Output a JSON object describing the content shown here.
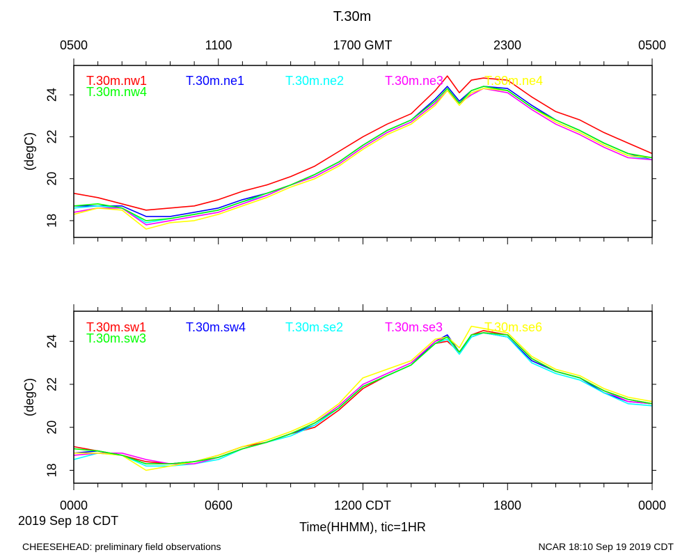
{
  "title": "T.30m",
  "top_axis_ticks": [
    "0500",
    "1100",
    "1700 GMT",
    "2300",
    "0500"
  ],
  "bottom_axis_ticks": [
    "0000",
    "0600",
    "1200 CDT",
    "1800",
    "0000"
  ],
  "date_label": "2019 Sep 18 CDT",
  "xlabel": "Time(HHMM), tic=1HR",
  "footer_left": "CHEESEHEAD: preliminary field observations",
  "footer_right": "NCAR 18:10 Sep 19 2019 CDT",
  "chart_data": [
    {
      "type": "line",
      "name": "top-panel",
      "ylabel": "(degC)",
      "xlim": [
        0,
        24
      ],
      "ylim": [
        17.2,
        25.4
      ],
      "yticks": [
        18,
        20,
        22,
        24
      ],
      "x": [
        0,
        1,
        2,
        3,
        4,
        5,
        6,
        7,
        8,
        9,
        10,
        11,
        12,
        13,
        14,
        15,
        15.5,
        16,
        16.5,
        17,
        18,
        19,
        20,
        21,
        22,
        23,
        24
      ],
      "series": [
        {
          "name": "T.30m.nw1",
          "color": "#ff0000",
          "values": [
            19.3,
            19.1,
            18.8,
            18.5,
            18.6,
            18.7,
            19.0,
            19.4,
            19.7,
            20.1,
            20.6,
            21.3,
            22.0,
            22.6,
            23.1,
            24.2,
            24.9,
            24.1,
            24.7,
            24.8,
            24.7,
            23.9,
            23.2,
            22.8,
            22.2,
            21.7,
            21.2
          ]
        },
        {
          "name": "T.30m.ne1",
          "color": "#0000ff",
          "values": [
            18.7,
            18.7,
            18.7,
            18.2,
            18.2,
            18.4,
            18.6,
            19.0,
            19.3,
            19.7,
            20.2,
            20.8,
            21.6,
            22.3,
            22.8,
            23.8,
            24.4,
            23.7,
            24.2,
            24.4,
            24.3,
            23.5,
            22.8,
            22.3,
            21.7,
            21.2,
            20.9
          ]
        },
        {
          "name": "T.30m.ne2",
          "color": "#00ffff",
          "values": [
            18.6,
            18.7,
            18.6,
            17.9,
            18.1,
            18.3,
            18.5,
            18.9,
            19.2,
            19.7,
            20.1,
            20.7,
            21.5,
            22.2,
            22.7,
            23.6,
            24.2,
            23.6,
            24.1,
            24.3,
            24.2,
            23.4,
            22.7,
            22.2,
            21.6,
            21.1,
            20.9
          ]
        },
        {
          "name": "T.30m.ne3",
          "color": "#ff00ff",
          "values": [
            18.4,
            18.6,
            18.6,
            17.8,
            18.0,
            18.2,
            18.4,
            18.8,
            19.2,
            19.7,
            20.1,
            20.7,
            21.5,
            22.2,
            22.7,
            23.6,
            24.2,
            23.6,
            24.0,
            24.3,
            24.1,
            23.3,
            22.6,
            22.1,
            21.5,
            21.0,
            20.9
          ]
        },
        {
          "name": "T.30m.ne4",
          "color": "#ffff00",
          "values": [
            18.3,
            18.6,
            18.5,
            17.6,
            17.9,
            18.0,
            18.3,
            18.7,
            19.1,
            19.6,
            20.0,
            20.6,
            21.4,
            22.1,
            22.6,
            23.5,
            24.2,
            23.5,
            24.1,
            24.3,
            24.2,
            23.4,
            22.7,
            22.2,
            21.6,
            21.1,
            21.0
          ]
        },
        {
          "name": "T.30m.nw4",
          "color": "#00ff00",
          "values": [
            18.7,
            18.8,
            18.6,
            18.0,
            18.1,
            18.3,
            18.5,
            18.9,
            19.3,
            19.7,
            20.2,
            20.8,
            21.6,
            22.3,
            22.8,
            23.7,
            24.3,
            23.6,
            24.2,
            24.4,
            24.2,
            23.4,
            22.8,
            22.3,
            21.7,
            21.2,
            21.0
          ]
        }
      ]
    },
    {
      "type": "line",
      "name": "bottom-panel",
      "ylabel": "(degC)",
      "xlim": [
        0,
        24
      ],
      "ylim": [
        17.4,
        25.4
      ],
      "yticks": [
        18,
        20,
        22,
        24
      ],
      "x": [
        0,
        1,
        2,
        3,
        4,
        5,
        6,
        7,
        8,
        9,
        10,
        11,
        12,
        13,
        14,
        15,
        15.5,
        16,
        16.5,
        17,
        18,
        19,
        20,
        21,
        22,
        23,
        24
      ],
      "series": [
        {
          "name": "T.30m.sw1",
          "color": "#ff0000",
          "values": [
            19.1,
            18.9,
            18.7,
            18.4,
            18.3,
            18.4,
            18.7,
            19.1,
            19.3,
            19.7,
            20.0,
            20.8,
            21.8,
            22.4,
            22.9,
            23.9,
            24.0,
            23.5,
            24.3,
            24.5,
            24.3,
            23.2,
            22.6,
            22.3,
            21.7,
            21.3,
            21.1
          ]
        },
        {
          "name": "T.30m.sw4",
          "color": "#0000ff",
          "values": [
            18.8,
            18.9,
            18.7,
            18.3,
            18.3,
            18.4,
            18.6,
            19.0,
            19.3,
            19.7,
            20.1,
            20.9,
            21.9,
            22.4,
            22.9,
            24.0,
            24.3,
            23.5,
            24.2,
            24.4,
            24.2,
            23.1,
            22.6,
            22.3,
            21.6,
            21.2,
            21.1
          ]
        },
        {
          "name": "T.30m.se2",
          "color": "#00ffff",
          "values": [
            18.5,
            18.8,
            18.7,
            18.2,
            18.2,
            18.3,
            18.5,
            19.0,
            19.3,
            19.6,
            20.1,
            20.9,
            21.9,
            22.4,
            22.9,
            23.9,
            24.1,
            23.4,
            24.2,
            24.4,
            24.2,
            23.0,
            22.5,
            22.2,
            21.6,
            21.1,
            21.0
          ]
        },
        {
          "name": "T.30m.se3",
          "color": "#ff00ff",
          "values": [
            18.7,
            18.8,
            18.8,
            18.5,
            18.3,
            18.3,
            18.6,
            19.0,
            19.3,
            19.7,
            20.2,
            21.0,
            22.0,
            22.5,
            23.0,
            24.0,
            24.2,
            23.5,
            24.3,
            24.4,
            24.3,
            23.2,
            22.6,
            22.3,
            21.7,
            21.2,
            21.1
          ]
        },
        {
          "name": "T.30m.se6",
          "color": "#ffff00",
          "values": [
            18.8,
            18.8,
            18.7,
            18.0,
            18.2,
            18.4,
            18.7,
            19.1,
            19.4,
            19.8,
            20.3,
            21.1,
            22.3,
            22.7,
            23.1,
            24.1,
            24.2,
            23.7,
            24.7,
            24.6,
            24.4,
            23.3,
            22.7,
            22.4,
            21.8,
            21.4,
            21.2
          ]
        },
        {
          "name": "T.30m.sw3",
          "color": "#00ff00",
          "values": [
            19.0,
            18.9,
            18.7,
            18.3,
            18.3,
            18.4,
            18.6,
            19.0,
            19.3,
            19.7,
            20.2,
            20.9,
            21.9,
            22.4,
            22.9,
            23.9,
            24.2,
            23.5,
            24.3,
            24.4,
            24.3,
            23.2,
            22.6,
            22.3,
            21.7,
            21.3,
            21.1
          ]
        }
      ]
    }
  ]
}
